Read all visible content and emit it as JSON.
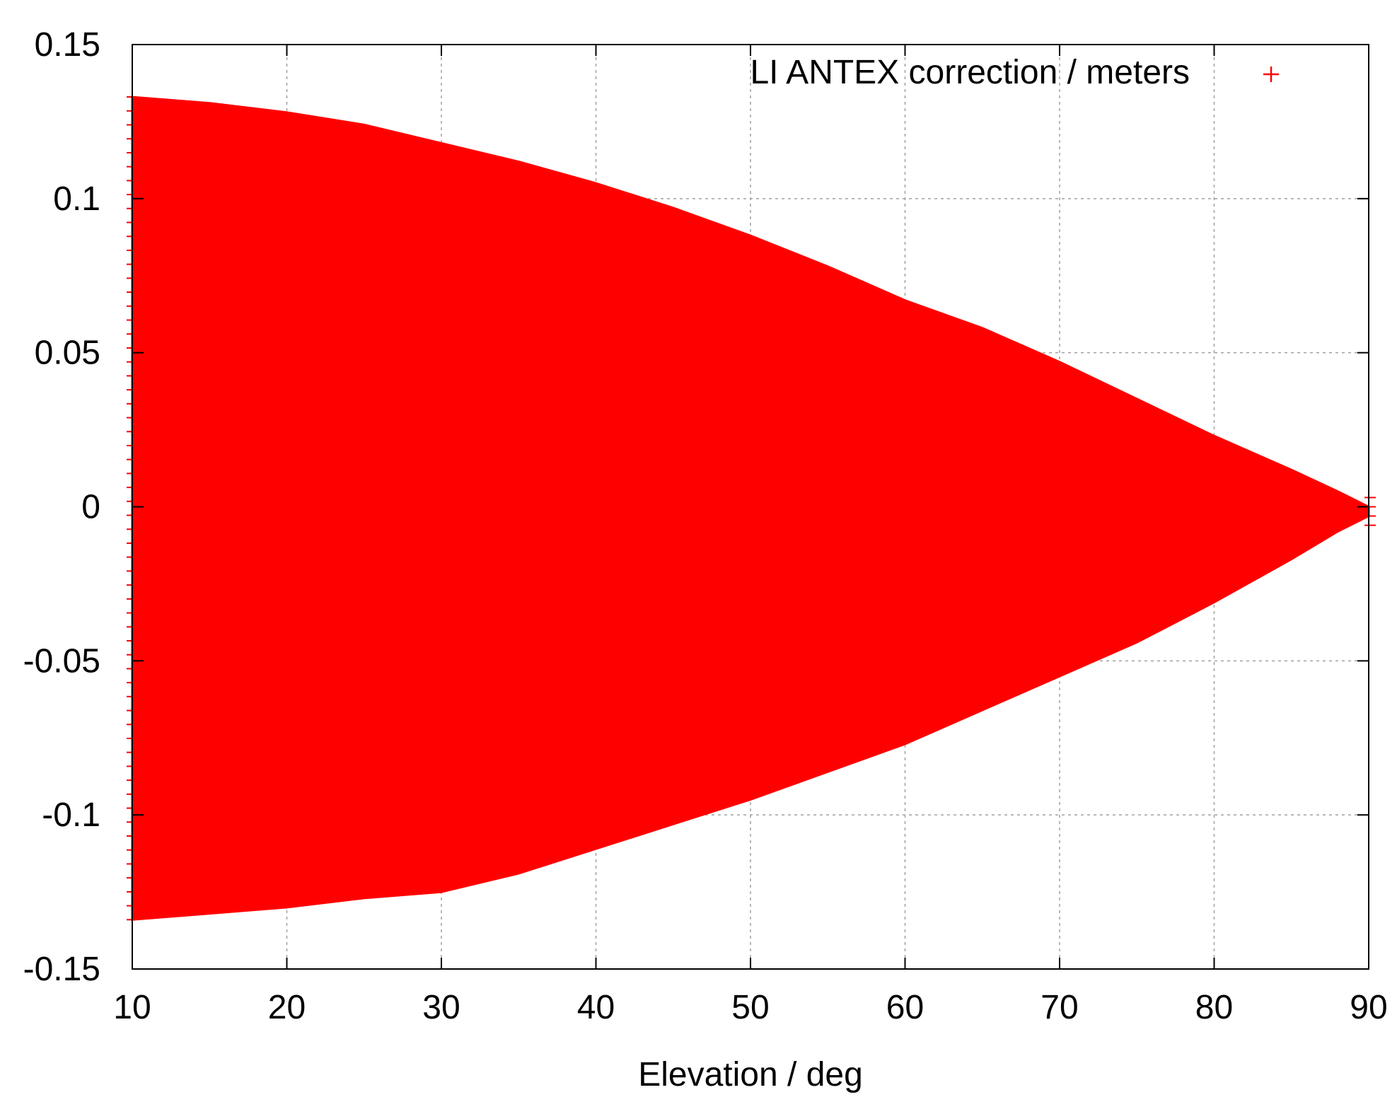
{
  "chart_data": {
    "type": "scatter",
    "title": "",
    "xlabel": "Elevation / deg",
    "ylabel": "",
    "xlim": [
      10,
      90
    ],
    "ylim": [
      -0.15,
      0.15
    ],
    "xticks": [
      10,
      20,
      30,
      40,
      50,
      60,
      70,
      80,
      90
    ],
    "xtick_labels": [
      "10",
      "20",
      "30",
      "40",
      "50",
      "60",
      "70",
      "80",
      "90"
    ],
    "yticks": [
      -0.15,
      -0.1,
      -0.05,
      0,
      0.05,
      0.1,
      0.15
    ],
    "ytick_labels": [
      "-0.15",
      "-0.1",
      "-0.05",
      "0",
      "0.05",
      "0.1",
      "0.15"
    ],
    "grid": true,
    "legend_position": "top-right",
    "series": [
      {
        "name": "LI ANTEX correction / meters",
        "color": "#ff0000",
        "marker": "plus",
        "description_shape": "filled envelope of points spanning from upper bound to lower bound at each elevation",
        "upper_envelope": {
          "x": [
            10,
            15,
            20,
            25,
            30,
            35,
            40,
            45,
            50,
            55,
            60,
            65,
            70,
            75,
            80,
            85,
            88,
            90
          ],
          "y": [
            0.133,
            0.131,
            0.128,
            0.124,
            0.118,
            0.112,
            0.105,
            0.097,
            0.088,
            0.078,
            0.067,
            0.058,
            0.047,
            0.035,
            0.023,
            0.012,
            0.005,
            0.0
          ]
        },
        "lower_envelope": {
          "x": [
            10,
            15,
            20,
            25,
            30,
            35,
            40,
            45,
            50,
            55,
            60,
            65,
            70,
            75,
            80,
            85,
            88,
            90
          ],
          "y": [
            -0.134,
            -0.132,
            -0.13,
            -0.127,
            -0.125,
            -0.119,
            -0.111,
            -0.103,
            -0.095,
            -0.086,
            -0.077,
            -0.066,
            -0.055,
            -0.044,
            -0.031,
            -0.017,
            -0.008,
            -0.003
          ]
        }
      }
    ]
  },
  "colors": {
    "series": "#ff0000",
    "axis": "#000000",
    "grid": "#a0a0a0",
    "background": "#ffffff"
  }
}
